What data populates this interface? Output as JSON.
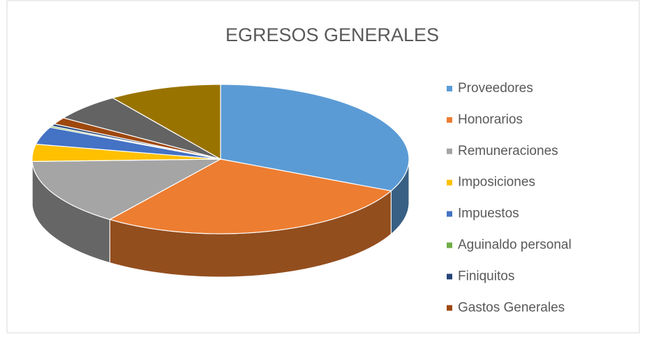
{
  "chart_data": {
    "type": "pie",
    "title": "EGRESOS GENERALES",
    "categories": [
      "Proveedores",
      "Honorarios",
      "Remuneraciones",
      "Imposiciones",
      "Impuestos",
      "Aguinaldo personal",
      "Finiquitos",
      "Gastos Generales",
      null,
      null
    ],
    "values": [
      32,
      28,
      14.5,
      3.7,
      3.8,
      0.3,
      0.5,
      1.5,
      6,
      9.7
    ],
    "colors": [
      "#5b9bd5",
      "#ed7d31",
      "#a5a5a5",
      "#ffc000",
      "#4472c4",
      "#70ad47",
      "#264478",
      "#9e480e",
      "#636363",
      "#997300"
    ],
    "legend": "right"
  }
}
